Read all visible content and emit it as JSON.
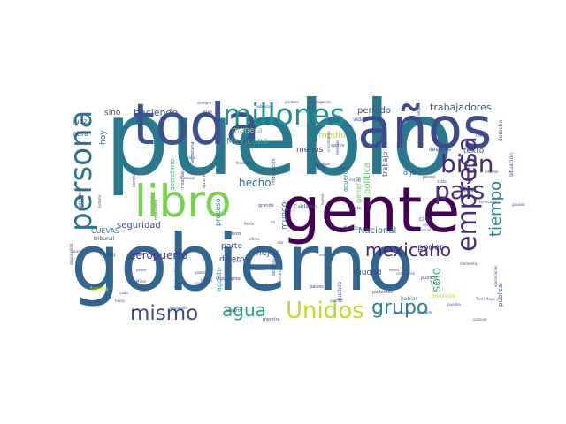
{
  "words": [
    {
      "text": "pueblo",
      "weight": 100,
      "color": "#2a788e"
    },
    {
      "text": "gobierno",
      "weight": 92,
      "color": "#31668e"
    },
    {
      "text": "gente",
      "weight": 72,
      "color": "#440154"
    },
    {
      "text": "toda",
      "weight": 64,
      "color": "#3b528b"
    },
    {
      "text": "años",
      "weight": 62,
      "color": "#3e4a89"
    },
    {
      "text": "libro",
      "weight": 48,
      "color": "#7ad151"
    },
    {
      "text": "millones",
      "weight": 34,
      "color": "#21918c"
    },
    {
      "text": "persona",
      "weight": 32,
      "color": "#2c728e"
    },
    {
      "text": "empresa",
      "weight": 30,
      "color": "#472d7b"
    },
    {
      "text": "país",
      "weight": 30,
      "color": "#46327e"
    },
    {
      "text": "bien",
      "weight": 28,
      "color": "#482878"
    },
    {
      "text": "Unidos",
      "weight": 26,
      "color": "#b5de2b"
    },
    {
      "text": "mismo",
      "weight": 24,
      "color": "#3e4989"
    },
    {
      "text": "grupo",
      "weight": 22,
      "color": "#25848e"
    },
    {
      "text": "mexicano",
      "weight": 20,
      "color": "#482475"
    },
    {
      "text": "agua",
      "weight": 20,
      "color": "#22a884"
    },
    {
      "text": "tiempo",
      "weight": 18,
      "color": "#26828e"
    },
    {
      "text": "sólo",
      "weight": 14,
      "color": "#35b779"
    },
    {
      "text": "hecho",
      "weight": 12,
      "color": "#31688e"
    },
    {
      "text": "aeropuerto",
      "weight": 12,
      "color": "#443a83"
    },
    {
      "text": "trabajadores",
      "weight": 11,
      "color": "#3b528b"
    },
    {
      "text": "haciendo",
      "weight": 11,
      "color": "#39568c"
    },
    {
      "text": "Mexicana",
      "weight": 10,
      "color": "#2db27d"
    },
    {
      "text": "periodo",
      "weight": 10,
      "color": "#3b528b"
    },
    {
      "text": "medio",
      "weight": 10,
      "color": "#bddf26"
    },
    {
      "text": "mejor",
      "weight": 10,
      "color": "#38598c"
    },
    {
      "text": "seguridad",
      "weight": 10,
      "color": "#3d4e8a"
    },
    {
      "text": "política",
      "weight": 10,
      "color": "#5ec962"
    },
    {
      "text": "Nacional",
      "weight": 10,
      "color": "#2a788e"
    },
    {
      "text": "poder",
      "weight": 10,
      "color": "#46337f"
    },
    {
      "text": "sino",
      "weight": 9,
      "color": "#414487"
    },
    {
      "text": "manera",
      "weight": 9,
      "color": "#a2da37"
    },
    {
      "text": "menos",
      "weight": 9,
      "color": "#404688"
    },
    {
      "text": "parte",
      "weight": 9,
      "color": "#3e4989"
    },
    {
      "text": "dinero",
      "weight": 9,
      "color": "#433e85"
    },
    {
      "text": "Ciudad",
      "weight": 9,
      "color": "#3e4989"
    },
    {
      "text": "texto",
      "weight": 9,
      "color": "#3b528b"
    },
    {
      "text": "hoy",
      "weight": 9,
      "color": "#31688e"
    },
    {
      "text": "mundo",
      "weight": 9,
      "color": "#2c728e"
    },
    {
      "text": "CUEVAS",
      "weight": 8,
      "color": "#27808e"
    },
    {
      "text": "general",
      "weight": 8,
      "color": "#6ccd5a"
    },
    {
      "text": "proceso",
      "weight": 8,
      "color": "#2a788e"
    },
    {
      "text": "dije",
      "weight": 8,
      "color": "#3b528b"
    },
    {
      "text": "juez",
      "weight": 8,
      "color": "#3e4a89"
    },
    {
      "text": "obra",
      "weight": 8,
      "color": "#414487"
    },
    {
      "text": "trabajo",
      "weight": 8,
      "color": "#3e4989"
    },
    {
      "text": "agosto",
      "weight": 8,
      "color": "#1f9e89"
    },
    {
      "text": "Aviación",
      "weight": 7,
      "color": "#3b528b"
    },
    {
      "text": "creo",
      "weight": 7,
      "color": "#424086"
    },
    {
      "text": "pública",
      "weight": 7,
      "color": "#3e4989"
    },
    {
      "text": "acuerdo",
      "weight": 7,
      "color": "#2a788e"
    },
    {
      "text": "secretario",
      "weight": 7,
      "color": "#2db27d"
    },
    {
      "text": "tribunal",
      "weight": 6,
      "color": "#453781"
    },
    {
      "text": "familia",
      "weight": 6,
      "color": "#c8e020"
    },
    {
      "text": "vida",
      "weight": 6,
      "color": "#3b528b"
    },
    {
      "text": "dijo",
      "weight": 6,
      "color": "#3e4989"
    },
    {
      "text": "situación",
      "weight": 6,
      "color": "#3b528b"
    },
    {
      "text": "derecho",
      "weight": 6,
      "color": "#3b528b"
    },
    {
      "text": "Calderón",
      "weight": 6,
      "color": "#3b528b"
    },
    {
      "text": "justicia",
      "weight": 6,
      "color": "#3e4989"
    },
    {
      "text": "tan",
      "weight": 6,
      "color": "#3e4989"
    },
    {
      "text": "hablar",
      "weight": 6,
      "color": "#2a788e"
    },
    {
      "text": "delito",
      "weight": 6,
      "color": "#3e4989"
    },
    {
      "text": "inversión",
      "weight": 6,
      "color": "#a0da39"
    },
    {
      "text": "después",
      "weight": 6,
      "color": "#3e4989"
    },
    {
      "text": "información",
      "weight": 5,
      "color": "#3b528b"
    },
    {
      "text": "importante",
      "weight": 5,
      "color": "#3e4989"
    },
    {
      "text": "verdad",
      "weight": 5,
      "color": "#3e4989"
    },
    {
      "text": "refiere",
      "weight": 5,
      "color": "#3e4989"
    },
    {
      "text": "abogado",
      "weight": 5,
      "color": "#3e4989"
    },
    {
      "text": "Secretaria",
      "weight": 5,
      "color": "#3e4989"
    },
    {
      "text": "seguir",
      "weight": 5,
      "color": "#3e4989"
    },
    {
      "text": "presa",
      "weight": 5,
      "color": "#3e4989"
    },
    {
      "text": "grande",
      "weight": 5,
      "color": "#3e4989"
    },
    {
      "text": "apoyo",
      "weight": 5,
      "color": "#3e4989"
    },
    {
      "text": "cuatro",
      "weight": 5,
      "color": "#3e4989"
    },
    {
      "text": "mentira",
      "weight": 5,
      "color": "#3e4989"
    },
    {
      "text": "sexenio",
      "weight": 5,
      "color": "#3e4989"
    },
    {
      "text": "primero",
      "weight": 5,
      "color": "#3e4989"
    },
    {
      "text": "países",
      "weight": 5,
      "color": "#3e4989"
    },
    {
      "text": "hace",
      "weight": 5,
      "color": "#3e4989"
    },
    {
      "text": "sido",
      "weight": 5,
      "color": "#3e4989"
    },
    {
      "text": "público",
      "weight": 5,
      "color": "#3e4989"
    },
    {
      "text": "podemos",
      "weight": 5,
      "color": "#3e4989"
    },
    {
      "text": "pesos",
      "weight": 5,
      "color": "#3e4989"
    },
    {
      "text": "hizo",
      "weight": 5,
      "color": "#3e4989"
    },
    {
      "text": "quiero",
      "weight": 5,
      "color": "#3e4989"
    },
    {
      "text": "servicio",
      "weight": 5,
      "color": "#3e4989"
    },
    {
      "text": "impuesto",
      "weight": 5,
      "color": "#3e4989"
    },
    {
      "text": "muchas",
      "weight": 5,
      "color": "#3e4989"
    },
    {
      "text": "hacen",
      "weight": 5,
      "color": "#3e4989"
    },
    {
      "text": "da",
      "weight": 4,
      "color": "#3e4989"
    },
    {
      "text": "dar",
      "weight": 4,
      "color": "#3e4989"
    },
    {
      "text": "vez",
      "weight": 4,
      "color": "#3e4989"
    },
    {
      "text": "nuevo",
      "weight": 4,
      "color": "#3e4989"
    },
    {
      "text": "mayor",
      "weight": 4,
      "color": "#3e4989"
    },
    {
      "text": "social",
      "weight": 4,
      "color": "#3e4989"
    },
    {
      "text": "trata",
      "weight": 4,
      "color": "#3e4989"
    },
    {
      "text": "pasado",
      "weight": 4,
      "color": "#3e4989"
    },
    {
      "text": "ferrocarril",
      "weight": 4,
      "color": "#3e4989"
    },
    {
      "text": "puedan",
      "weight": 4,
      "color": "#3e4989"
    },
    {
      "text": "conocer",
      "weight": 4,
      "color": "#3e4989"
    },
    {
      "text": "cinco",
      "weight": 4,
      "color": "#3e4989"
    },
    {
      "text": "desigualdad",
      "weight": 4,
      "color": "#3e4989"
    },
    {
      "text": "nombres",
      "weight": 4,
      "color": "#3e4989"
    },
    {
      "text": "hacia",
      "weight": 4,
      "color": "#3e4989"
    },
    {
      "text": "desarrollo",
      "weight": 4,
      "color": "#3e4989"
    },
    {
      "text": "pobre",
      "weight": 4,
      "color": "#3e4989"
    },
    {
      "text": "Miren",
      "weight": 4,
      "color": "#3e4989"
    },
    {
      "text": "cada",
      "weight": 4,
      "color": "#3e4989"
    },
    {
      "text": "podría",
      "weight": 4,
      "color": "#3e4989"
    },
    {
      "text": "Perón",
      "weight": 4,
      "color": "#3e4989"
    },
    {
      "text": "último",
      "weight": 4,
      "color": "#3e4989"
    },
    {
      "text": "siempre",
      "weight": 4,
      "color": "#3e4989"
    },
    {
      "text": "primera",
      "weight": 4,
      "color": "#3e4989"
    },
    {
      "text": "investigación",
      "weight": 4,
      "color": "#3e4989"
    },
    {
      "text": "pobreza",
      "weight": 4,
      "color": "#3e4989"
    },
    {
      "text": "federal",
      "weight": 4,
      "color": "#3e4989"
    },
    {
      "text": "arriba",
      "weight": 4,
      "color": "#3e4989"
    },
    {
      "text": "cuenta",
      "weight": 4,
      "color": "#3e4989"
    },
    {
      "text": "bienes",
      "weight": 4,
      "color": "#3e4989"
    },
    {
      "text": "nunca",
      "weight": 4,
      "color": "#3e4989"
    },
    {
      "text": "luis",
      "weight": 4,
      "color": "#3e4989"
    },
    {
      "text": "crecimiento",
      "weight": 4,
      "color": "#3e4989"
    },
    {
      "text": "ejemplo",
      "weight": 4,
      "color": "#3e4989"
    },
    {
      "text": "momento",
      "weight": 4,
      "color": "#3e4989"
    },
    {
      "text": "corrupción",
      "weight": 4,
      "color": "#3e4989"
    },
    {
      "text": "historia",
      "weight": 4,
      "color": "#3e4989"
    },
    {
      "text": "informe",
      "weight": 4,
      "color": "#3e4989"
    },
    {
      "text": "detenido",
      "weight": 4,
      "color": "#3e4989"
    },
    {
      "text": "lugar",
      "weight": 4,
      "color": "#3e4989"
    },
    {
      "text": "Fox",
      "weight": 4,
      "color": "#3e4989"
    },
    {
      "text": "gran",
      "weight": 4,
      "color": "#3e4989"
    },
    {
      "text": "veces",
      "weight": 4,
      "color": "#3e4989"
    },
    {
      "text": "mucho",
      "weight": 4,
      "color": "#3e4989"
    },
    {
      "text": "operaciones",
      "weight": 4,
      "color": "#3e4989"
    },
    {
      "text": "ver",
      "weight": 4,
      "color": "#3e4989"
    },
    {
      "text": "Paracuar",
      "weight": 4,
      "color": "#3e4989"
    },
    {
      "text": "campaña",
      "weight": 4,
      "color": "#3e4989"
    },
    {
      "text": "Cuatro",
      "weight": 4,
      "color": "#3e4989"
    },
    {
      "text": "Trem Maya",
      "weight": 4,
      "color": "#3e4989"
    },
    {
      "text": "condición",
      "weight": 4,
      "color": "#3e4989"
    }
  ]
}
